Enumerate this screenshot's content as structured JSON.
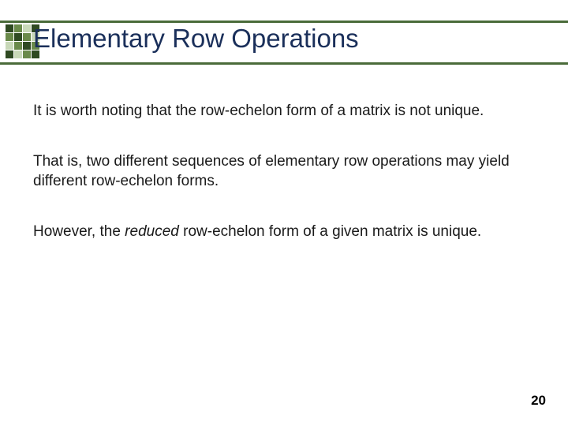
{
  "colors": {
    "band_border": "#4a6b3a",
    "title": "#1a2f5a",
    "body_text": "#1a1a1a",
    "pagenum": "#000000",
    "icon_dark": "#2f4a22",
    "icon_mid": "#6a8a4a",
    "icon_light": "#c8d8b8",
    "background": "#ffffff"
  },
  "typography": {
    "title_fontsize": 33,
    "body_fontsize": 19,
    "pagenum_fontsize": 17
  },
  "title": "Elementary Row Operations",
  "paragraphs": [
    {
      "text": "It is worth noting that the row-echelon form of a matrix is not unique."
    },
    {
      "text": "That is, two different sequences of elementary row operations may yield different row-echelon forms."
    },
    {
      "prefix": "However, the ",
      "italic": "reduced",
      "suffix": " row-echelon form of a given matrix is unique."
    }
  ],
  "page_number": "20"
}
